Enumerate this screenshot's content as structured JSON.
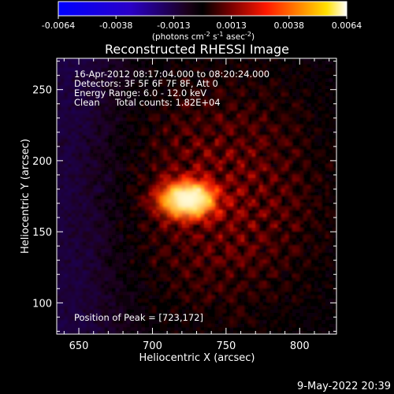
{
  "chart_data": {
    "type": "heatmap",
    "title": "Reconstructed RHESSI Image",
    "xlabel": "Heliocentric X (arcsec)",
    "ylabel": "Heliocentric Y (arcsec)",
    "xlim": [
      635,
      825
    ],
    "ylim": [
      78,
      272
    ],
    "x_ticks": [
      "650",
      "700",
      "750",
      "800"
    ],
    "y_ticks": [
      "100",
      "150",
      "200",
      "250"
    ],
    "x_tick_values": [
      650,
      700,
      750,
      800
    ],
    "y_tick_values": [
      100,
      150,
      200,
      250
    ],
    "colorbar": {
      "ticks": [
        "-0.0064",
        "-0.0038",
        "-0.0013",
        "0.0013",
        "0.0038",
        "0.0064"
      ],
      "unit_label": "(photons cm",
      "unit_sup1": "-2",
      "unit_mid": " s",
      "unit_sup2": "-1",
      "unit_mid2": " asec",
      "unit_sup3": "-2",
      "unit_end": ")",
      "colors": [
        "#0000ff",
        "#000000",
        "#ff0000",
        "#ffff00",
        "#ffffff"
      ],
      "range": [
        -0.0064,
        0.0064
      ]
    },
    "annotations": [
      "16-Apr-2012 08:17:04.000 to 08:20:24.000",
      "Detectors: 3F 5F 6F 7F 8F, Att 0",
      "Energy Range: 6.0 - 12.0 keV",
      "Clean",
      "Total counts: 1.82E+04"
    ],
    "peak_label": "Position of Peak = [723,172]",
    "peak": [
      723,
      172
    ],
    "peak_value": 0.0064,
    "timestamp": "9-May-2022 20:39"
  }
}
